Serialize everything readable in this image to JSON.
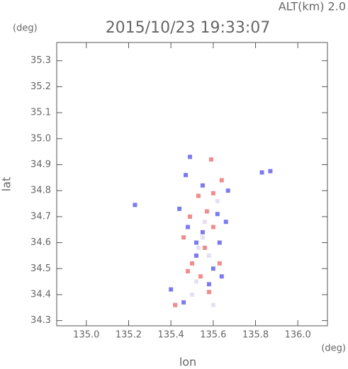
{
  "chart_data": {
    "type": "scatter",
    "title": "2015/10/23 19:33:07",
    "subtitle": "ALT(km) 2.0",
    "x_label": "lon",
    "y_label": "lat",
    "x_unit": "(deg)",
    "y_unit": "(deg)",
    "xlim": [
      134.86,
      136.14
    ],
    "ylim": [
      34.28,
      35.37
    ],
    "xticks": [
      {
        "value": 135,
        "label": "135.0"
      },
      135.2,
      135.4,
      135.6,
      135.8,
      {
        "value": 136,
        "label": "136.0"
      }
    ],
    "yticks": [
      34.3,
      34.4,
      34.5,
      34.6,
      34.7,
      34.8,
      34.9,
      {
        "value": 35,
        "label": "35.0"
      },
      35.1,
      35.2,
      35.3
    ],
    "series": [
      {
        "color": "#e6e0f2",
        "x": [
          135.55,
          135.58,
          135.52,
          135.5,
          135.56,
          135.62,
          135.6,
          135.53
        ],
        "y": [
          34.62,
          34.55,
          34.45,
          34.4,
          34.68,
          34.76,
          34.36,
          34.58
        ]
      },
      {
        "color": "#7b7bf0",
        "x": [
          135.23,
          135.87,
          135.83,
          135.49,
          135.47,
          135.55,
          135.67,
          135.44,
          135.62,
          135.48,
          135.55,
          135.63,
          135.52,
          135.6,
          135.64,
          135.4,
          135.58,
          135.46,
          135.52,
          135.66
        ],
        "y": [
          34.745,
          34.875,
          34.87,
          34.93,
          34.86,
          34.82,
          34.8,
          34.73,
          34.71,
          34.66,
          34.64,
          34.6,
          34.55,
          34.5,
          34.47,
          34.42,
          34.44,
          34.37,
          34.6,
          34.68
        ]
      },
      {
        "color": "#f08c8c",
        "x": [
          135.59,
          135.64,
          135.6,
          135.53,
          135.57,
          135.49,
          135.6,
          135.46,
          135.56,
          135.5,
          135.63,
          135.54,
          135.42,
          135.58,
          135.48
        ],
        "y": [
          34.92,
          34.84,
          34.79,
          34.78,
          34.72,
          34.7,
          34.66,
          34.62,
          34.58,
          34.52,
          34.52,
          34.47,
          34.36,
          34.41,
          34.49
        ]
      }
    ]
  }
}
